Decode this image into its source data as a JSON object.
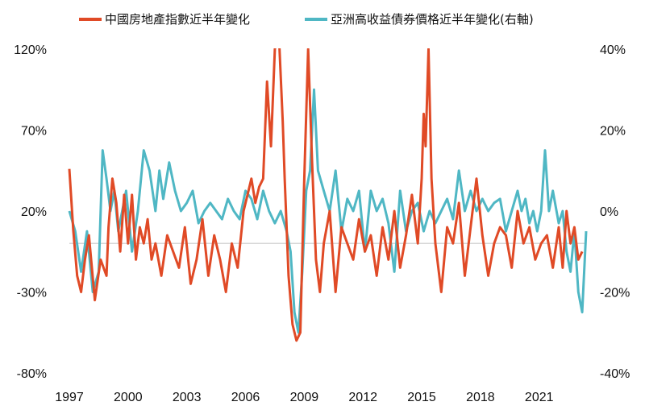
{
  "chart_data": {
    "type": "line",
    "title": "",
    "xlabel": "",
    "ylabel": "",
    "x_ticks": [
      "1997",
      "2000",
      "2003",
      "2006",
      "2009",
      "2012",
      "2015",
      "2018",
      "2021"
    ],
    "xlim": [
      1997.0,
      2023.4
    ],
    "ylim_left": [
      -80,
      120
    ],
    "ylim_right": [
      -40,
      40
    ],
    "y_ticks_left": [
      "120%",
      "70%",
      "20%",
      "-30%",
      "-80%"
    ],
    "y_ticks_right": [
      "40%",
      "20%",
      "0%",
      "-20%",
      "-40%"
    ],
    "reference_line_left": 0,
    "legend_position": "top",
    "colors": {
      "series_left": "#e04a26",
      "series_right": "#4fb7c4",
      "zero_line": "#c8c8c8"
    },
    "series": [
      {
        "name": "中國房地產指數近半年變化",
        "axis": "left",
        "x": [
          1997.0,
          1997.2,
          1997.4,
          1997.6,
          1997.8,
          1998.0,
          1998.3,
          1998.6,
          1998.9,
          1999.0,
          1999.2,
          1999.4,
          1999.6,
          1999.8,
          2000.0,
          2000.2,
          2000.4,
          2000.6,
          2000.8,
          2001.0,
          2001.2,
          2001.4,
          2001.7,
          2002.0,
          2002.3,
          2002.6,
          2002.9,
          2003.2,
          2003.5,
          2003.8,
          2004.1,
          2004.4,
          2004.7,
          2005.0,
          2005.3,
          2005.6,
          2005.9,
          2006.1,
          2006.3,
          2006.5,
          2006.7,
          2006.9,
          2007.1,
          2007.3,
          2007.5,
          2007.7,
          2007.9,
          2008.0,
          2008.2,
          2008.4,
          2008.6,
          2008.8,
          2009.0,
          2009.2,
          2009.4,
          2009.6,
          2009.8,
          2010.0,
          2010.3,
          2010.6,
          2010.9,
          2011.2,
          2011.5,
          2011.8,
          2012.1,
          2012.4,
          2012.7,
          2013.0,
          2013.3,
          2013.6,
          2013.9,
          2014.2,
          2014.5,
          2014.8,
          2015.0,
          2015.1,
          2015.2,
          2015.35,
          2015.5,
          2015.7,
          2016.0,
          2016.3,
          2016.6,
          2016.9,
          2017.2,
          2017.5,
          2017.8,
          2018.1,
          2018.4,
          2018.7,
          2019.0,
          2019.3,
          2019.6,
          2019.9,
          2020.2,
          2020.5,
          2020.8,
          2021.1,
          2021.4,
          2021.7,
          2022.0,
          2022.2,
          2022.4,
          2022.6,
          2022.8,
          2023.0,
          2023.2
        ],
        "values": [
          46,
          8,
          -20,
          -30,
          -10,
          5,
          -35,
          -10,
          -20,
          10,
          40,
          25,
          -5,
          30,
          0,
          30,
          -10,
          10,
          0,
          15,
          -10,
          0,
          -20,
          5,
          -5,
          -15,
          10,
          -25,
          -10,
          15,
          -20,
          5,
          -10,
          -30,
          0,
          -15,
          20,
          30,
          40,
          25,
          35,
          40,
          100,
          60,
          120,
          130,
          75,
          40,
          -20,
          -50,
          -60,
          -55,
          40,
          120,
          50,
          -10,
          -30,
          0,
          20,
          -30,
          10,
          0,
          -10,
          15,
          -5,
          5,
          -20,
          10,
          -10,
          20,
          -15,
          5,
          30,
          0,
          40,
          80,
          60,
          120,
          40,
          0,
          -30,
          10,
          0,
          25,
          -20,
          10,
          40,
          5,
          -20,
          0,
          10,
          5,
          -15,
          20,
          0,
          10,
          -10,
          0,
          5,
          -15,
          10,
          -15,
          20,
          0,
          10,
          -10,
          -5
        ]
      },
      {
        "name": "亞洲高收益債券價格近半年變化(右軸)",
        "axis": "right",
        "x": [
          1997.0,
          1997.3,
          1997.6,
          1997.9,
          1998.2,
          1998.5,
          1998.7,
          1998.9,
          1999.1,
          1999.3,
          1999.5,
          1999.7,
          1999.9,
          2000.2,
          2000.5,
          2000.8,
          2001.1,
          2001.4,
          2001.6,
          2001.8,
          2002.1,
          2002.4,
          2002.7,
          2003.0,
          2003.3,
          2003.6,
          2003.9,
          2004.2,
          2004.5,
          2004.8,
          2005.1,
          2005.4,
          2005.7,
          2006.0,
          2006.3,
          2006.6,
          2006.9,
          2007.2,
          2007.5,
          2007.8,
          2008.1,
          2008.3,
          2008.5,
          2008.7,
          2008.9,
          2009.1,
          2009.3,
          2009.5,
          2009.7,
          2010.0,
          2010.3,
          2010.6,
          2010.9,
          2011.2,
          2011.5,
          2011.8,
          2012.1,
          2012.4,
          2012.7,
          2013.0,
          2013.3,
          2013.6,
          2013.9,
          2014.2,
          2014.5,
          2014.8,
          2015.1,
          2015.4,
          2015.7,
          2016.0,
          2016.3,
          2016.6,
          2016.9,
          2017.2,
          2017.5,
          2017.8,
          2018.1,
          2018.4,
          2018.7,
          2019.0,
          2019.3,
          2019.6,
          2019.9,
          2020.1,
          2020.3,
          2020.5,
          2020.7,
          2020.9,
          2021.1,
          2021.3,
          2021.5,
          2021.7,
          2022.0,
          2022.2,
          2022.4,
          2022.6,
          2022.8,
          2023.0,
          2023.2,
          2023.4
        ],
        "values": [
          0,
          -5,
          -15,
          -5,
          -20,
          -15,
          15,
          8,
          0,
          5,
          -5,
          0,
          5,
          -10,
          0,
          15,
          10,
          0,
          10,
          3,
          12,
          5,
          0,
          2,
          5,
          -3,
          0,
          2,
          0,
          -2,
          3,
          0,
          -2,
          5,
          3,
          -2,
          5,
          0,
          -3,
          0,
          -5,
          -10,
          -25,
          -30,
          -15,
          5,
          10,
          30,
          10,
          5,
          0,
          10,
          -5,
          3,
          0,
          5,
          -10,
          5,
          0,
          3,
          -3,
          -15,
          5,
          -5,
          0,
          2,
          -5,
          0,
          -3,
          0,
          3,
          -2,
          10,
          0,
          5,
          0,
          3,
          0,
          2,
          3,
          -5,
          0,
          5,
          0,
          3,
          -3,
          0,
          -5,
          0,
          15,
          0,
          5,
          -3,
          0,
          -10,
          -15,
          -5,
          -20,
          -25,
          -5
        ]
      }
    ]
  }
}
